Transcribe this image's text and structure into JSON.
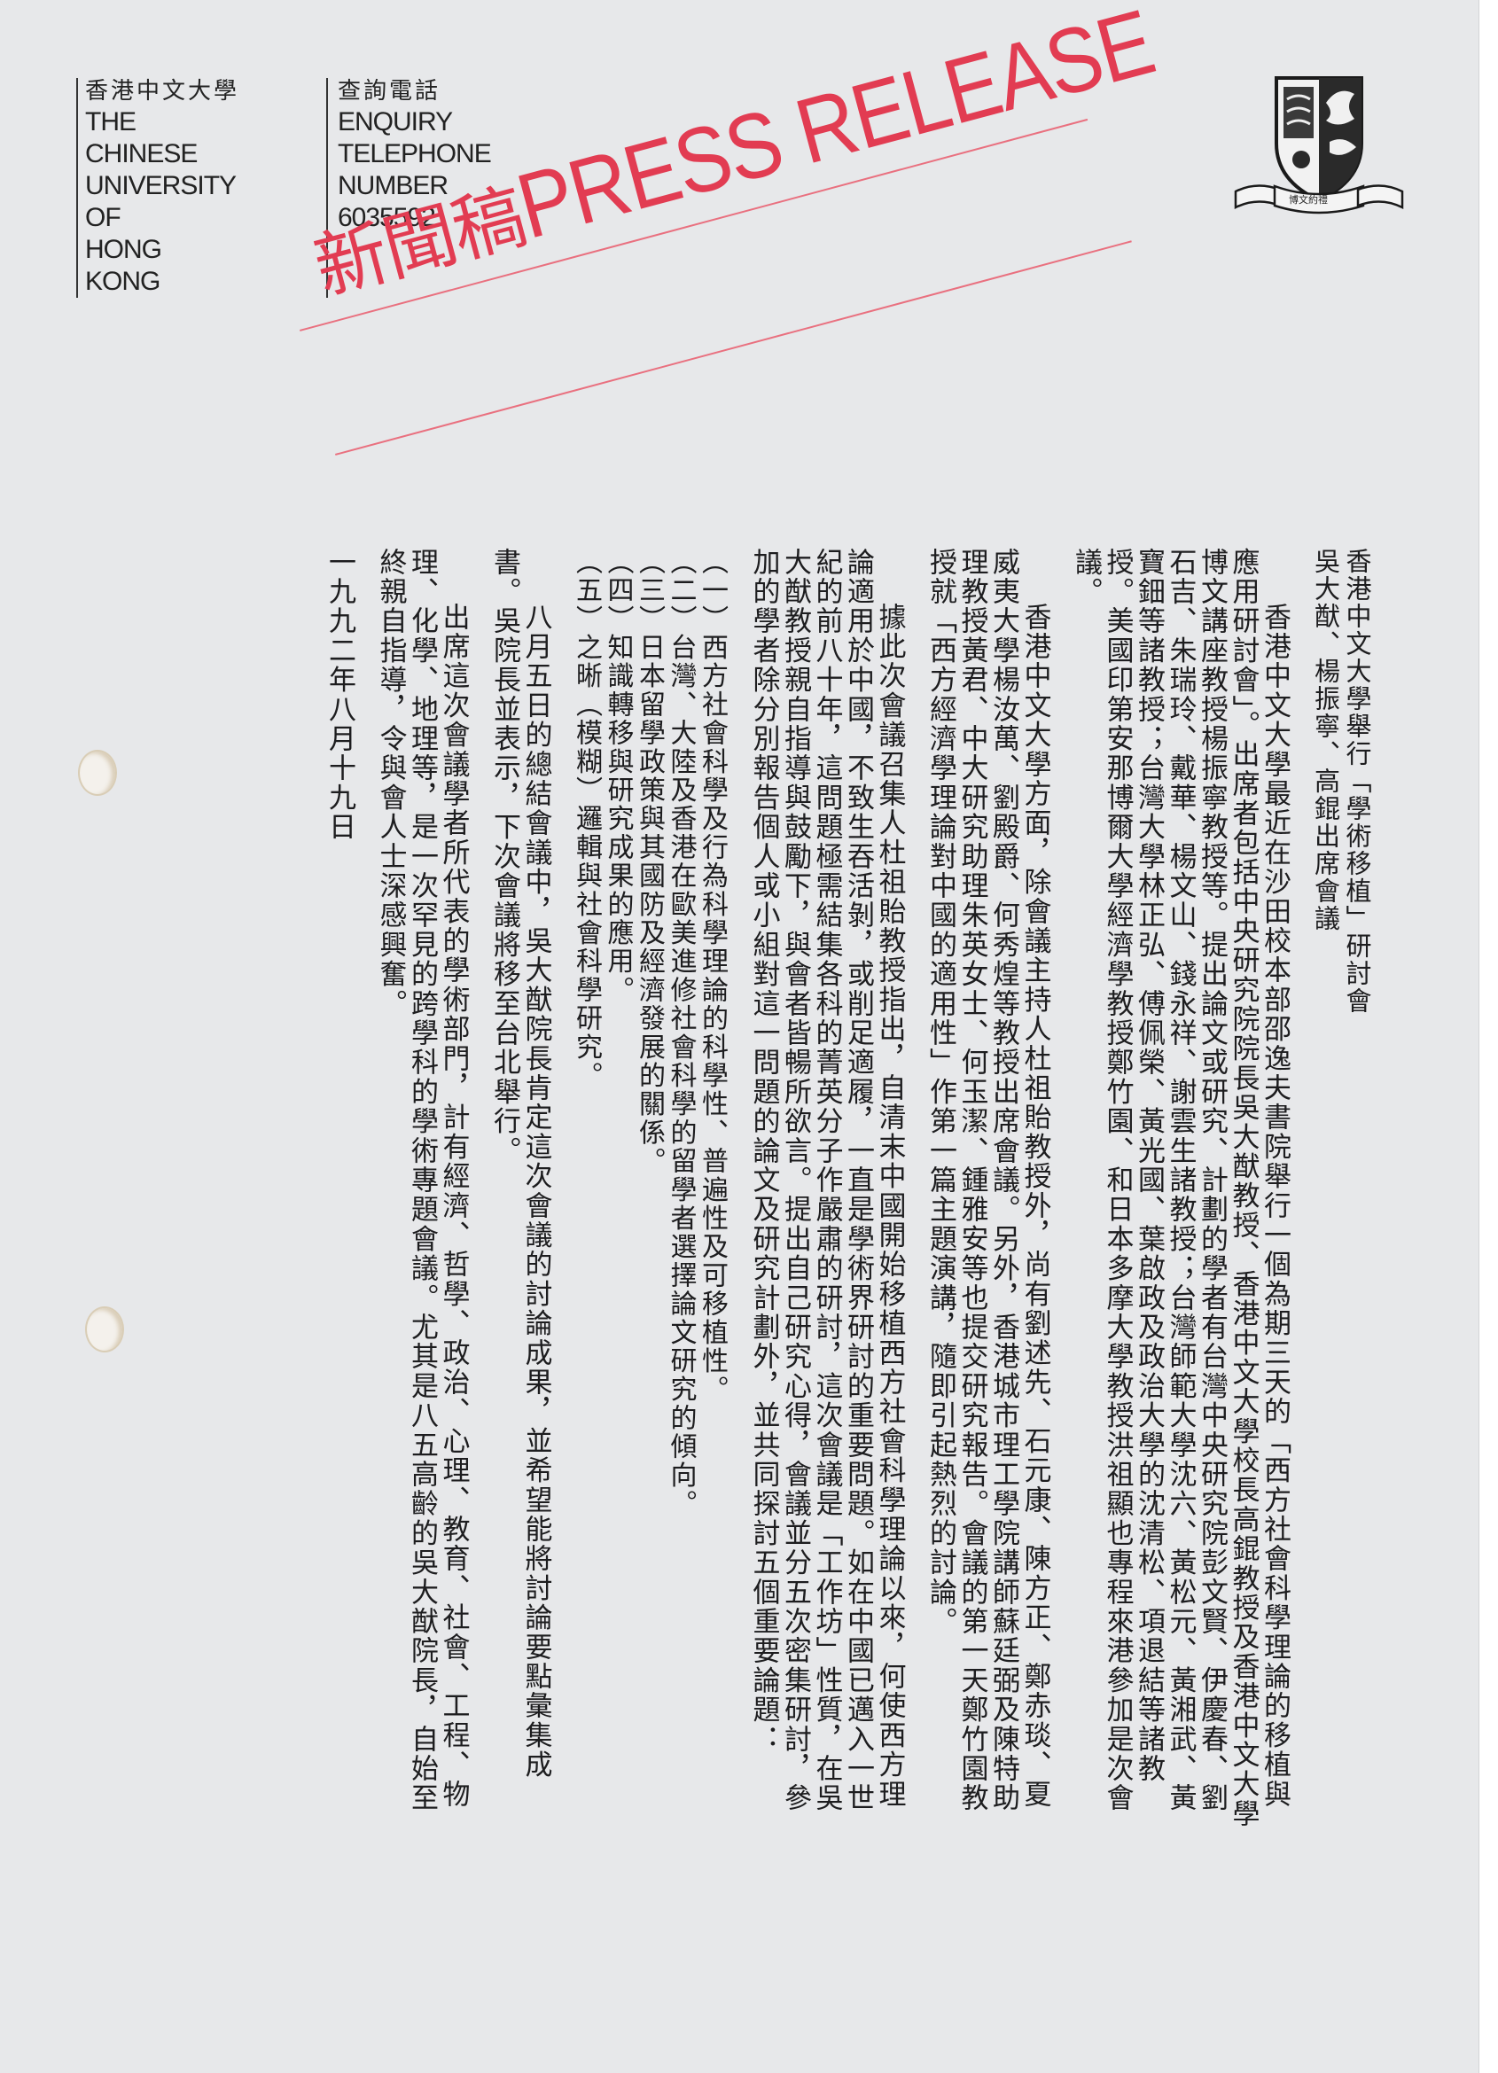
{
  "header": {
    "university_cn": "香港中文大學",
    "university_en": "THE\nCHINESE\nUNIVERSITY\nOF\nHONG\nKONG",
    "enquiry_cn": "查詢電話",
    "enquiry_en": "ENQUIRY\nTELEPHONE\nNUMBER\n6035592"
  },
  "stamp": {
    "cn": "新聞稿",
    "en": "PRESS RELEASE",
    "color": "#e23c52"
  },
  "crest": {
    "icon": "cuhk-crest-icon",
    "motto": "博文約禮"
  },
  "title": {
    "line1": "香港中文大學舉行「學術移植」研討會",
    "line2": "吳大猷、楊振寧、高錕出席會議"
  },
  "paragraphs": [
    "香港中文大學最近在沙田校本部邵逸夫書院舉行一個為期三天的「西方社會科學理論的移植與應用研討會」。出席者包括中央研究院院長吳大猷教授、香港中文大學校長高錕教授及香港中文大學博文講座教授楊振寧教授等。提出論文或研究、計劃的學者有台灣中央研究院彭文賢、伊慶春、劉石吉、朱瑞玲、戴華、楊文山、錢永祥、謝雲生諸教授；台灣師範大學沈六、黃松元、黃湘武、黃寶鈿等諸教授；台灣大學林正弘、傅佩榮、黃光國、葉啟政及政治大學的沈清松、項退結等諸教授。美國印第安那博爾大學經濟學教授鄭竹園、和日本多摩大學教授洪祖顯也專程來港參加是次會議。",
    "香港中文大學方面，除會議主持人杜祖貽教授外，尚有劉述先、石元康、陳方正、鄭赤琰、夏威夷大學楊汝萬、劉殿爵、何秀煌等教授出席會議。另外，香港城市理工學院講師蘇廷弼及陳特助理教授黃君、中大研究助理朱英女士、何玉潔、鍾雅安等也提交研究報告。會議的第一天鄭竹園教授就「西方經濟學理論對中國的適用性」作第一篇主題演講，隨即引起熱烈的討論。",
    "據此次會議召集人杜祖貽教授指出，自清末中國開始移植西方社會科學理論以來，何使西方理論適用於中國，不致生吞活剝，或削足適履，一直是學術界研討的重要問題。如在中國已邁入一世紀的前八十年，這問題極需結集各科的菁英分子作嚴肅的研討，這次會議是「工作坊」性質，在吳大猷教授親自指導與鼓勵下，與會者皆暢所欲言。提出自己研究心得，會議並分五次密集研討，參加的學者除分別報告個人或小組對這一問題的論文及研究計劃外，並共同探討五個重要論題："
  ],
  "topics": [
    "（一）西方社會科學及行為科學理論的科學性、普遍性及可移植性。",
    "（二）台灣、大陸及香港在歐美進修社會科學的留學者選擇論文研究的傾向。",
    "（三）日本留學政策與其國防及經濟發展的關係。",
    "（四）知識轉移與研究成果的應用。",
    "（五）之晰（模糊）邏輯與社會科學研究。"
  ],
  "closing": [
    "八月五日的總結會議中，吳大猷院長肯定這次會議的討論成果，並希望能將討論要點彙集成書。吳院長並表示，下次會議將移至台北舉行。",
    "出席這次會議學者所代表的學術部門，計有經濟、哲學、政治、心理、教育、社會、工程、物理、化學、地理等，是一次罕見的跨學科的學術專題會議。尤其是八五高齡的吳大猷院長，自始至終親自指導，令與會人士深感興奮。"
  ],
  "date": "一九九二年八月十九日"
}
